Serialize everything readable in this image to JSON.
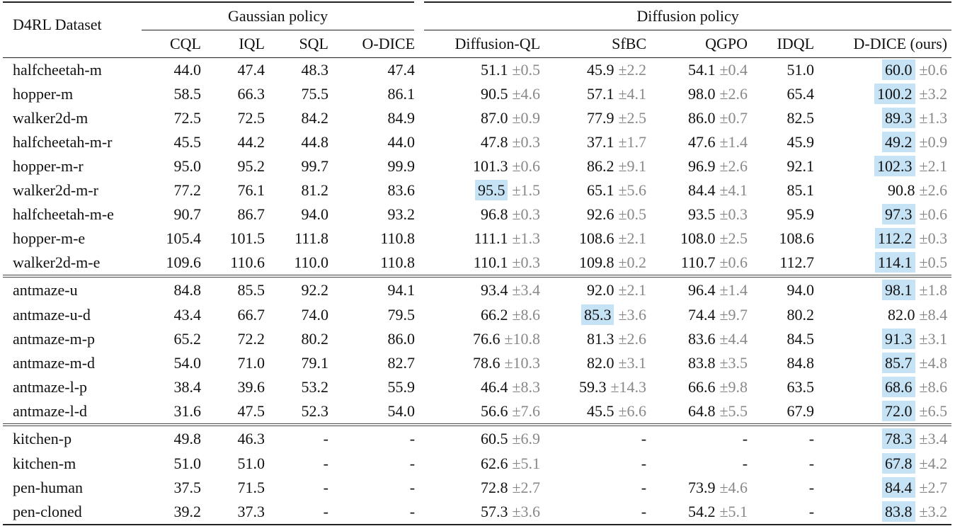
{
  "table": {
    "dataset_header": "D4RL Dataset",
    "groups": [
      {
        "label": "Gaussian policy",
        "span": 4
      },
      {
        "label": "Diffusion policy",
        "span": 5
      }
    ],
    "columns": [
      "CQL",
      "IQL",
      "SQL",
      "O-DICE",
      "Diffusion-QL",
      "SfBC",
      "QGPO",
      "IDQL",
      "D-DICE (ours)"
    ],
    "sections": [
      [
        [
          "halfcheetah-m",
          "44.0",
          "47.4",
          "48.3",
          "47.4",
          {
            "m": "51.1",
            "s": "±0.5"
          },
          {
            "m": "45.9",
            "s": "±2.2"
          },
          {
            "m": "54.1",
            "s": "±0.4"
          },
          "51.0",
          {
            "m": "60.0",
            "s": "±0.6",
            "hl": true
          }
        ],
        [
          "hopper-m",
          "58.5",
          "66.3",
          "75.5",
          "86.1",
          {
            "m": "90.5",
            "s": "±4.6"
          },
          {
            "m": "57.1",
            "s": "±4.1"
          },
          {
            "m": "98.0",
            "s": "±2.6"
          },
          "65.4",
          {
            "m": "100.2",
            "s": "±3.2",
            "hl": true
          }
        ],
        [
          "walker2d-m",
          "72.5",
          "72.5",
          "84.2",
          "84.9",
          {
            "m": "87.0",
            "s": "±0.9"
          },
          {
            "m": "77.9",
            "s": "±2.5"
          },
          {
            "m": "86.0",
            "s": "±0.7"
          },
          "82.5",
          {
            "m": "89.3",
            "s": "±1.3",
            "hl": true
          }
        ],
        [
          "halfcheetah-m-r",
          "45.5",
          "44.2",
          "44.8",
          "44.0",
          {
            "m": "47.8",
            "s": "±0.3"
          },
          {
            "m": "37.1",
            "s": "±1.7"
          },
          {
            "m": "47.6",
            "s": "±1.4"
          },
          "45.9",
          {
            "m": "49.2",
            "s": "±0.9",
            "hl": true
          }
        ],
        [
          "hopper-m-r",
          "95.0",
          "95.2",
          "99.7",
          "99.9",
          {
            "m": "101.3",
            "s": "±0.6"
          },
          {
            "m": "86.2",
            "s": "±9.1"
          },
          {
            "m": "96.9",
            "s": "±2.6"
          },
          "92.1",
          {
            "m": "102.3",
            "s": "±2.1",
            "hl": true
          }
        ],
        [
          "walker2d-m-r",
          "77.2",
          "76.1",
          "81.2",
          "83.6",
          {
            "m": "95.5",
            "s": "±1.5",
            "hl": true
          },
          {
            "m": "65.1",
            "s": "±5.6"
          },
          {
            "m": "84.4",
            "s": "±4.1"
          },
          "85.1",
          {
            "m": "90.8",
            "s": "±2.6"
          }
        ],
        [
          "halfcheetah-m-e",
          "90.7",
          "86.7",
          "94.0",
          "93.2",
          {
            "m": "96.8",
            "s": "±0.3"
          },
          {
            "m": "92.6",
            "s": "±0.5"
          },
          {
            "m": "93.5",
            "s": "±0.3"
          },
          "95.9",
          {
            "m": "97.3",
            "s": "±0.6",
            "hl": true
          }
        ],
        [
          "hopper-m-e",
          "105.4",
          "101.5",
          "111.8",
          "110.8",
          {
            "m": "111.1",
            "s": "±1.3"
          },
          {
            "m": "108.6",
            "s": "±2.1"
          },
          {
            "m": "108.0",
            "s": "±2.5"
          },
          "108.6",
          {
            "m": "112.2",
            "s": "±0.3",
            "hl": true
          }
        ],
        [
          "walker2d-m-e",
          "109.6",
          "110.6",
          "110.0",
          "110.8",
          {
            "m": "110.1",
            "s": "±0.3"
          },
          {
            "m": "109.8",
            "s": "±0.2"
          },
          {
            "m": "110.7",
            "s": "±0.6"
          },
          "112.7",
          {
            "m": "114.1",
            "s": "±0.5",
            "hl": true
          }
        ]
      ],
      [
        [
          "antmaze-u",
          "84.8",
          "85.5",
          "92.2",
          "94.1",
          {
            "m": "93.4",
            "s": "±3.4"
          },
          {
            "m": "92.0",
            "s": "±2.1"
          },
          {
            "m": "96.4",
            "s": "±1.4"
          },
          "94.0",
          {
            "m": "98.1",
            "s": "±1.8",
            "hl": true
          }
        ],
        [
          "antmaze-u-d",
          "43.4",
          "66.7",
          "74.0",
          "79.5",
          {
            "m": "66.2",
            "s": "±8.6"
          },
          {
            "m": "85.3",
            "s": "±3.6",
            "hl": true
          },
          {
            "m": "74.4",
            "s": "±9.7"
          },
          "80.2",
          {
            "m": "82.0",
            "s": "±8.4"
          }
        ],
        [
          "antmaze-m-p",
          "65.2",
          "72.2",
          "80.2",
          "86.0",
          {
            "m": "76.6",
            "s": "±10.8"
          },
          {
            "m": "81.3",
            "s": "±2.6"
          },
          {
            "m": "83.6",
            "s": "±4.4"
          },
          "84.5",
          {
            "m": "91.3",
            "s": "±3.1",
            "hl": true
          }
        ],
        [
          "antmaze-m-d",
          "54.0",
          "71.0",
          "79.1",
          "82.7",
          {
            "m": "78.6",
            "s": "±10.3"
          },
          {
            "m": "82.0",
            "s": "±3.1"
          },
          {
            "m": "83.8",
            "s": "±3.5"
          },
          "84.8",
          {
            "m": "85.7",
            "s": "±4.8",
            "hl": true
          }
        ],
        [
          "antmaze-l-p",
          "38.4",
          "39.6",
          "53.2",
          "55.9",
          {
            "m": "46.4",
            "s": "±8.3"
          },
          {
            "m": "59.3",
            "s": "±14.3"
          },
          {
            "m": "66.6",
            "s": "±9.8"
          },
          "63.5",
          {
            "m": "68.6",
            "s": "±8.6",
            "hl": true
          }
        ],
        [
          "antmaze-l-d",
          "31.6",
          "47.5",
          "52.3",
          "54.0",
          {
            "m": "56.6",
            "s": "±7.6"
          },
          {
            "m": "45.5",
            "s": "±6.6"
          },
          {
            "m": "64.8",
            "s": "±5.5"
          },
          "67.9",
          {
            "m": "72.0",
            "s": "±6.5",
            "hl": true
          }
        ]
      ],
      [
        [
          "kitchen-p",
          "49.8",
          "46.3",
          "-",
          "-",
          {
            "m": "60.5",
            "s": "±6.9"
          },
          "-",
          "-",
          "-",
          {
            "m": "78.3",
            "s": "±3.4",
            "hl": true
          }
        ],
        [
          "kitchen-m",
          "51.0",
          "51.0",
          "-",
          "-",
          {
            "m": "62.6",
            "s": "±5.1"
          },
          "-",
          "-",
          "-",
          {
            "m": "67.8",
            "s": "±4.2",
            "hl": true
          }
        ],
        [
          "pen-human",
          "37.5",
          "71.5",
          "-",
          "-",
          {
            "m": "72.8",
            "s": "±2.7"
          },
          "-",
          {
            "m": "73.9",
            "s": "±4.6"
          },
          "-",
          {
            "m": "84.4",
            "s": "±2.7",
            "hl": true
          }
        ],
        [
          "pen-cloned",
          "39.2",
          "37.3",
          "-",
          "-",
          {
            "m": "57.3",
            "s": "±3.6"
          },
          "-",
          {
            "m": "54.2",
            "s": "±5.1"
          },
          "-",
          {
            "m": "83.8",
            "s": "±3.2",
            "hl": true
          }
        ]
      ]
    ]
  }
}
